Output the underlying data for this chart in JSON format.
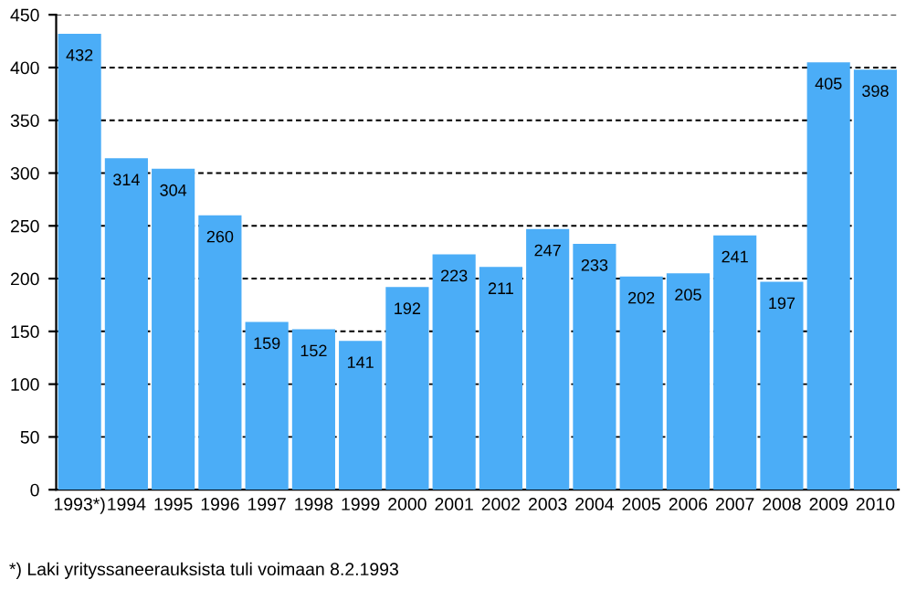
{
  "chart_data": {
    "type": "bar",
    "categories": [
      "1993*)",
      "1994",
      "1995",
      "1996",
      "1997",
      "1998",
      "1999",
      "2000",
      "2001",
      "2002",
      "2003",
      "2004",
      "2005",
      "2006",
      "2007",
      "2008",
      "2009",
      "2010"
    ],
    "values": [
      432,
      314,
      304,
      260,
      159,
      152,
      141,
      192,
      223,
      211,
      247,
      233,
      202,
      205,
      241,
      197,
      405,
      398
    ],
    "color": "#4badf7",
    "ylim": [
      0,
      450
    ],
    "yticks": [
      0,
      50,
      100,
      150,
      200,
      250,
      300,
      350,
      400,
      450
    ],
    "grid": "y",
    "line_style": "dashed",
    "data_labels": true,
    "annotations": [
      "*) Laki yrityssaneerauksista tuli voimaan 8.2.1993"
    ]
  }
}
